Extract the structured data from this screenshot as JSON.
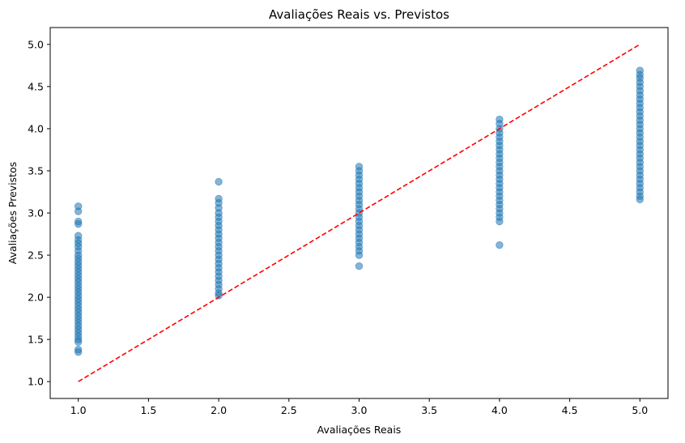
{
  "chart_data": {
    "type": "scatter",
    "title": "Avaliações Reais vs. Previstos",
    "xlabel": "Avaliações Reais",
    "ylabel": "Avaliações Previstos",
    "xlim": [
      0.8,
      5.2
    ],
    "ylim": [
      0.8,
      5.2
    ],
    "xticks": [
      "1.0",
      "1.5",
      "2.0",
      "2.5",
      "3.0",
      "3.5",
      "4.0",
      "4.5",
      "5.0"
    ],
    "yticks": [
      "1.0",
      "1.5",
      "2.0",
      "2.5",
      "3.0",
      "3.5",
      "4.0",
      "4.5",
      "5.0"
    ],
    "grid": false,
    "point_color": "#1f77b4",
    "reference_line": {
      "from": [
        1.0,
        1.0
      ],
      "to": [
        5.0,
        5.0
      ],
      "color": "#ff0000",
      "style": "dashed"
    },
    "series": [
      {
        "points": [
          [
            1,
            3.08
          ],
          [
            1,
            3.02
          ],
          [
            1,
            2.9
          ],
          [
            1,
            2.87
          ],
          [
            1,
            2.73
          ],
          [
            1,
            2.68
          ],
          [
            1,
            2.64
          ],
          [
            1,
            2.6
          ],
          [
            1,
            2.55
          ],
          [
            1,
            2.5
          ],
          [
            1,
            2.46
          ],
          [
            1,
            2.42
          ],
          [
            1,
            2.38
          ],
          [
            1,
            2.34
          ],
          [
            1,
            2.3
          ],
          [
            1,
            2.26
          ],
          [
            1,
            2.22
          ],
          [
            1,
            2.18
          ],
          [
            1,
            2.14
          ],
          [
            1,
            2.1
          ],
          [
            1,
            2.06
          ],
          [
            1,
            2.02
          ],
          [
            1,
            1.98
          ],
          [
            1,
            1.94
          ],
          [
            1,
            1.9
          ],
          [
            1,
            1.86
          ],
          [
            1,
            1.82
          ],
          [
            1,
            1.78
          ],
          [
            1,
            1.74
          ],
          [
            1,
            1.7
          ],
          [
            1,
            1.66
          ],
          [
            1,
            1.62
          ],
          [
            1,
            1.58
          ],
          [
            1,
            1.54
          ],
          [
            1,
            1.5
          ],
          [
            1,
            1.47
          ],
          [
            1,
            1.38
          ],
          [
            1,
            1.35
          ],
          [
            2,
            3.37
          ],
          [
            2,
            3.17
          ],
          [
            2,
            3.12
          ],
          [
            2,
            3.06
          ],
          [
            2,
            3.0
          ],
          [
            2,
            2.95
          ],
          [
            2,
            2.9
          ],
          [
            2,
            2.85
          ],
          [
            2,
            2.8
          ],
          [
            2,
            2.75
          ],
          [
            2,
            2.7
          ],
          [
            2,
            2.65
          ],
          [
            2,
            2.6
          ],
          [
            2,
            2.55
          ],
          [
            2,
            2.5
          ],
          [
            2,
            2.45
          ],
          [
            2,
            2.4
          ],
          [
            2,
            2.35
          ],
          [
            2,
            2.3
          ],
          [
            2,
            2.25
          ],
          [
            2,
            2.2
          ],
          [
            2,
            2.15
          ],
          [
            2,
            2.1
          ],
          [
            2,
            2.05
          ],
          [
            2,
            2.02
          ],
          [
            3,
            3.55
          ],
          [
            3,
            3.5
          ],
          [
            3,
            3.45
          ],
          [
            3,
            3.4
          ],
          [
            3,
            3.35
          ],
          [
            3,
            3.3
          ],
          [
            3,
            3.25
          ],
          [
            3,
            3.2
          ],
          [
            3,
            3.15
          ],
          [
            3,
            3.1
          ],
          [
            3,
            3.05
          ],
          [
            3,
            3.0
          ],
          [
            3,
            2.95
          ],
          [
            3,
            2.9
          ],
          [
            3,
            2.85
          ],
          [
            3,
            2.8
          ],
          [
            3,
            2.75
          ],
          [
            3,
            2.7
          ],
          [
            3,
            2.65
          ],
          [
            3,
            2.6
          ],
          [
            3,
            2.55
          ],
          [
            3,
            2.5
          ],
          [
            3,
            2.37
          ],
          [
            4,
            4.11
          ],
          [
            4,
            4.06
          ],
          [
            4,
            4.0
          ],
          [
            4,
            3.95
          ],
          [
            4,
            3.9
          ],
          [
            4,
            3.85
          ],
          [
            4,
            3.8
          ],
          [
            4,
            3.75
          ],
          [
            4,
            3.7
          ],
          [
            4,
            3.65
          ],
          [
            4,
            3.6
          ],
          [
            4,
            3.55
          ],
          [
            4,
            3.5
          ],
          [
            4,
            3.45
          ],
          [
            4,
            3.4
          ],
          [
            4,
            3.35
          ],
          [
            4,
            3.3
          ],
          [
            4,
            3.25
          ],
          [
            4,
            3.2
          ],
          [
            4,
            3.15
          ],
          [
            4,
            3.1
          ],
          [
            4,
            3.05
          ],
          [
            4,
            3.0
          ],
          [
            4,
            2.95
          ],
          [
            4,
            2.9
          ],
          [
            4,
            2.62
          ],
          [
            5,
            4.69
          ],
          [
            5,
            4.64
          ],
          [
            5,
            4.6
          ],
          [
            5,
            4.55
          ],
          [
            5,
            4.5
          ],
          [
            5,
            4.45
          ],
          [
            5,
            4.4
          ],
          [
            5,
            4.35
          ],
          [
            5,
            4.3
          ],
          [
            5,
            4.25
          ],
          [
            5,
            4.2
          ],
          [
            5,
            4.15
          ],
          [
            5,
            4.1
          ],
          [
            5,
            4.05
          ],
          [
            5,
            4.0
          ],
          [
            5,
            3.95
          ],
          [
            5,
            3.9
          ],
          [
            5,
            3.85
          ],
          [
            5,
            3.8
          ],
          [
            5,
            3.75
          ],
          [
            5,
            3.7
          ],
          [
            5,
            3.65
          ],
          [
            5,
            3.6
          ],
          [
            5,
            3.55
          ],
          [
            5,
            3.5
          ],
          [
            5,
            3.45
          ],
          [
            5,
            3.4
          ],
          [
            5,
            3.35
          ],
          [
            5,
            3.3
          ],
          [
            5,
            3.25
          ],
          [
            5,
            3.2
          ],
          [
            5,
            3.16
          ]
        ]
      }
    ]
  }
}
